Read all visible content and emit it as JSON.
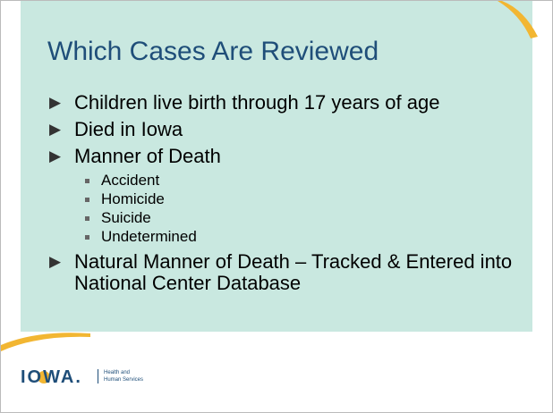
{
  "title": "Which Cases Are Reviewed",
  "bullets": [
    {
      "text": "Children live birth through 17 years of age",
      "sub": []
    },
    {
      "text": "Died in Iowa",
      "sub": []
    },
    {
      "text": "Manner of Death",
      "sub": [
        "Accident",
        "Homicide",
        "Suicide",
        "Undetermined"
      ]
    },
    {
      "text": "Natural Manner of Death – Tracked & Entered into National Center Database",
      "sub": []
    }
  ],
  "footer": {
    "logo": "IOWA.",
    "line1": "Health and",
    "line2": "Human Services"
  }
}
